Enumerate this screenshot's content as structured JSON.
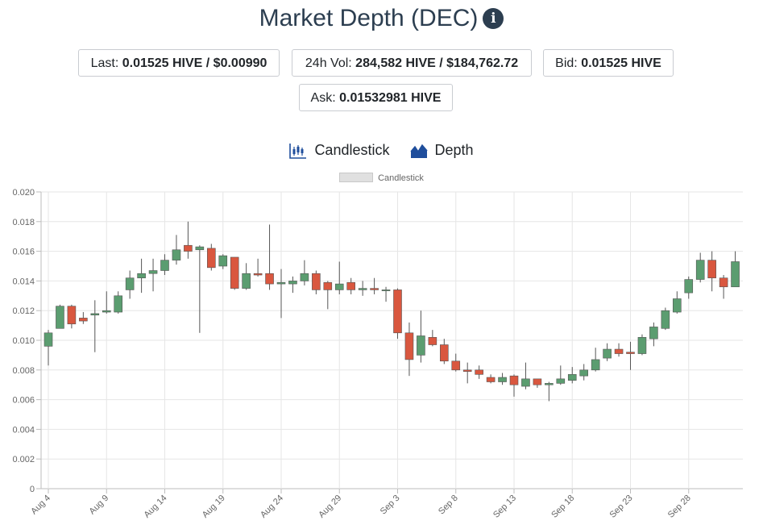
{
  "header": {
    "title": "Market Depth (DEC)",
    "info_glyph": "i"
  },
  "stats": {
    "last_label": "Last: ",
    "last_value": "0.01525 HIVE / $0.00990",
    "vol_label": "24h Vol: ",
    "vol_value": "284,582 HIVE / $184,762.72",
    "bid_label": "Bid: ",
    "bid_value": "0.01525 HIVE",
    "ask_label": "Ask: ",
    "ask_value": "0.01532981 HIVE"
  },
  "toggles": {
    "candlestick_label": "Candlestick",
    "depth_label": "Depth"
  },
  "colors": {
    "up": "#5b9d70",
    "down": "#d9573f",
    "grid": "#e6e6e6",
    "title": "#2c3e50",
    "accent": "#1f4e9c"
  },
  "chart_data": {
    "type": "candlestick",
    "legend": "Candlestick",
    "legend_position": "top",
    "grid": true,
    "ylim": [
      0,
      0.02
    ],
    "yticks": [
      "0",
      "0.002",
      "0.004",
      "0.006",
      "0.008",
      "0.010",
      "0.012",
      "0.014",
      "0.016",
      "0.018",
      "0.020"
    ],
    "ytick_values": [
      0,
      0.002,
      0.004,
      0.006,
      0.008,
      0.01,
      0.012,
      0.014,
      0.016,
      0.018,
      0.02
    ],
    "xticks": [
      "Aug 4",
      "Aug 9",
      "Aug 14",
      "Aug 19",
      "Aug 24",
      "Aug 29",
      "Sep 3",
      "Sep 8",
      "Sep 13",
      "Sep 18",
      "Sep 23",
      "Sep 28"
    ],
    "candles": [
      {
        "date": "Aug 4",
        "o": 0.0096,
        "h": 0.0107,
        "l": 0.0083,
        "c": 0.0105
      },
      {
        "date": "Aug 5",
        "o": 0.0108,
        "h": 0.0124,
        "l": 0.0108,
        "c": 0.0123
      },
      {
        "date": "Aug 6",
        "o": 0.0123,
        "h": 0.0124,
        "l": 0.0108,
        "c": 0.0111
      },
      {
        "date": "Aug 7",
        "o": 0.0115,
        "h": 0.0119,
        "l": 0.0111,
        "c": 0.0113
      },
      {
        "date": "Aug 8",
        "o": 0.0117,
        "h": 0.0127,
        "l": 0.0092,
        "c": 0.0118
      },
      {
        "date": "Aug 9",
        "o": 0.0119,
        "h": 0.0133,
        "l": 0.0118,
        "c": 0.012
      },
      {
        "date": "Aug 10",
        "o": 0.0119,
        "h": 0.0133,
        "l": 0.0118,
        "c": 0.013
      },
      {
        "date": "Aug 11",
        "o": 0.0134,
        "h": 0.0147,
        "l": 0.0128,
        "c": 0.0142
      },
      {
        "date": "Aug 12",
        "o": 0.0142,
        "h": 0.0155,
        "l": 0.0132,
        "c": 0.0145
      },
      {
        "date": "Aug 13",
        "o": 0.0145,
        "h": 0.0155,
        "l": 0.0133,
        "c": 0.0147
      },
      {
        "date": "Aug 14",
        "o": 0.0147,
        "h": 0.0158,
        "l": 0.0144,
        "c": 0.0154
      },
      {
        "date": "Aug 15",
        "o": 0.0154,
        "h": 0.0171,
        "l": 0.0151,
        "c": 0.0161
      },
      {
        "date": "Aug 16",
        "o": 0.0164,
        "h": 0.018,
        "l": 0.0155,
        "c": 0.016
      },
      {
        "date": "Aug 17",
        "o": 0.0161,
        "h": 0.0164,
        "l": 0.0105,
        "c": 0.0163
      },
      {
        "date": "Aug 18",
        "o": 0.0162,
        "h": 0.0165,
        "l": 0.0147,
        "c": 0.0149
      },
      {
        "date": "Aug 19",
        "o": 0.015,
        "h": 0.0158,
        "l": 0.0148,
        "c": 0.0157
      },
      {
        "date": "Aug 20",
        "o": 0.0156,
        "h": 0.0156,
        "l": 0.0134,
        "c": 0.0135
      },
      {
        "date": "Aug 21",
        "o": 0.0135,
        "h": 0.0152,
        "l": 0.0134,
        "c": 0.0145
      },
      {
        "date": "Aug 22",
        "o": 0.0145,
        "h": 0.0155,
        "l": 0.0143,
        "c": 0.0144
      },
      {
        "date": "Aug 23",
        "o": 0.0145,
        "h": 0.0178,
        "l": 0.0134,
        "c": 0.0138
      },
      {
        "date": "Aug 24",
        "o": 0.0138,
        "h": 0.0148,
        "l": 0.0115,
        "c": 0.0139
      },
      {
        "date": "Aug 25",
        "o": 0.0138,
        "h": 0.0143,
        "l": 0.0132,
        "c": 0.014
      },
      {
        "date": "Aug 26",
        "o": 0.014,
        "h": 0.0154,
        "l": 0.0137,
        "c": 0.0145
      },
      {
        "date": "Aug 27",
        "o": 0.0145,
        "h": 0.0147,
        "l": 0.0131,
        "c": 0.0134
      },
      {
        "date": "Aug 28",
        "o": 0.0139,
        "h": 0.014,
        "l": 0.0121,
        "c": 0.0134
      },
      {
        "date": "Aug 29",
        "o": 0.0134,
        "h": 0.0153,
        "l": 0.0131,
        "c": 0.0138
      },
      {
        "date": "Aug 30",
        "o": 0.0139,
        "h": 0.0142,
        "l": 0.0131,
        "c": 0.0134
      },
      {
        "date": "Aug 31",
        "o": 0.0134,
        "h": 0.014,
        "l": 0.013,
        "c": 0.0135
      },
      {
        "date": "Sep 1",
        "o": 0.0135,
        "h": 0.0142,
        "l": 0.0131,
        "c": 0.0134
      },
      {
        "date": "Sep 2",
        "o": 0.0134,
        "h": 0.0136,
        "l": 0.0126,
        "c": 0.0134
      },
      {
        "date": "Sep 3",
        "o": 0.0134,
        "h": 0.0135,
        "l": 0.0101,
        "c": 0.0105
      },
      {
        "date": "Sep 4",
        "o": 0.0105,
        "h": 0.0112,
        "l": 0.0076,
        "c": 0.0087
      },
      {
        "date": "Sep 5",
        "o": 0.009,
        "h": 0.012,
        "l": 0.0085,
        "c": 0.0103
      },
      {
        "date": "Sep 6",
        "o": 0.0102,
        "h": 0.0107,
        "l": 0.0096,
        "c": 0.0097
      },
      {
        "date": "Sep 7",
        "o": 0.0097,
        "h": 0.0101,
        "l": 0.0084,
        "c": 0.0086
      },
      {
        "date": "Sep 8",
        "o": 0.0086,
        "h": 0.0091,
        "l": 0.0079,
        "c": 0.008
      },
      {
        "date": "Sep 9",
        "o": 0.008,
        "h": 0.0085,
        "l": 0.0071,
        "c": 0.0079
      },
      {
        "date": "Sep 10",
        "o": 0.008,
        "h": 0.0083,
        "l": 0.0074,
        "c": 0.0077
      },
      {
        "date": "Sep 11",
        "o": 0.0075,
        "h": 0.0077,
        "l": 0.0071,
        "c": 0.0072
      },
      {
        "date": "Sep 12",
        "o": 0.0072,
        "h": 0.0078,
        "l": 0.007,
        "c": 0.0075
      },
      {
        "date": "Sep 13",
        "o": 0.0076,
        "h": 0.0077,
        "l": 0.0062,
        "c": 0.007
      },
      {
        "date": "Sep 14",
        "o": 0.0069,
        "h": 0.0085,
        "l": 0.0067,
        "c": 0.0074
      },
      {
        "date": "Sep 15",
        "o": 0.0074,
        "h": 0.0074,
        "l": 0.0068,
        "c": 0.007
      },
      {
        "date": "Sep 16",
        "o": 0.007,
        "h": 0.0072,
        "l": 0.0059,
        "c": 0.0071
      },
      {
        "date": "Sep 17",
        "o": 0.0071,
        "h": 0.0083,
        "l": 0.007,
        "c": 0.0074
      },
      {
        "date": "Sep 18",
        "o": 0.0073,
        "h": 0.0082,
        "l": 0.0071,
        "c": 0.0077
      },
      {
        "date": "Sep 19",
        "o": 0.0076,
        "h": 0.0084,
        "l": 0.0073,
        "c": 0.008
      },
      {
        "date": "Sep 20",
        "o": 0.008,
        "h": 0.0095,
        "l": 0.0079,
        "c": 0.0087
      },
      {
        "date": "Sep 21",
        "o": 0.0088,
        "h": 0.0098,
        "l": 0.0086,
        "c": 0.0094
      },
      {
        "date": "Sep 22",
        "o": 0.0094,
        "h": 0.0098,
        "l": 0.0089,
        "c": 0.0091
      },
      {
        "date": "Sep 23",
        "o": 0.0092,
        "h": 0.0099,
        "l": 0.008,
        "c": 0.0091
      },
      {
        "date": "Sep 24",
        "o": 0.0091,
        "h": 0.0104,
        "l": 0.009,
        "c": 0.0102
      },
      {
        "date": "Sep 25",
        "o": 0.0101,
        "h": 0.0112,
        "l": 0.0096,
        "c": 0.0109
      },
      {
        "date": "Sep 26",
        "o": 0.0108,
        "h": 0.0122,
        "l": 0.0107,
        "c": 0.012
      },
      {
        "date": "Sep 27",
        "o": 0.0119,
        "h": 0.0133,
        "l": 0.0118,
        "c": 0.0128
      },
      {
        "date": "Sep 28",
        "o": 0.0132,
        "h": 0.0143,
        "l": 0.0128,
        "c": 0.0141
      },
      {
        "date": "Sep 29",
        "o": 0.0141,
        "h": 0.0159,
        "l": 0.0139,
        "c": 0.0154
      },
      {
        "date": "Sep 30",
        "o": 0.0154,
        "h": 0.016,
        "l": 0.0133,
        "c": 0.0142
      },
      {
        "date": "Oct 1",
        "o": 0.0142,
        "h": 0.0144,
        "l": 0.0128,
        "c": 0.0136
      },
      {
        "date": "Oct 2",
        "o": 0.0136,
        "h": 0.016,
        "l": 0.0136,
        "c": 0.0153
      }
    ]
  }
}
